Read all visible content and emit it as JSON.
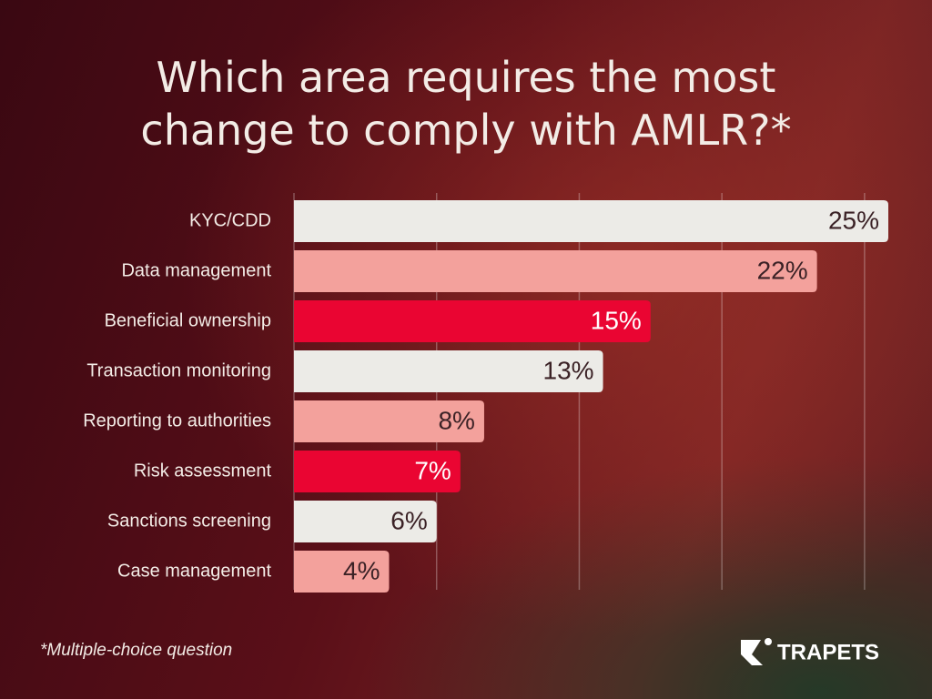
{
  "chart_data": {
    "type": "bar",
    "orientation": "horizontal",
    "title": "Which area requires the most change to comply with AMLR?*",
    "categories": [
      "KYC/CDD",
      "Data management",
      "Beneficial ownership",
      "Transaction monitoring",
      "Reporting to authorities",
      "Risk assessment",
      "Sanctions screening",
      "Case management"
    ],
    "values": [
      25,
      22,
      15,
      13,
      8,
      7,
      6,
      4
    ],
    "value_labels": [
      "25%",
      "22%",
      "15%",
      "13%",
      "8%",
      "7%",
      "6%",
      "4%"
    ],
    "colors": [
      "#ecebe7",
      "#f3a19c",
      "#ea0532",
      "#ecebe7",
      "#f3a19c",
      "#ea0532",
      "#ecebe7",
      "#f3a19c"
    ],
    "xlim": [
      0,
      25
    ],
    "xticks": [
      6,
      12,
      18,
      24
    ],
    "grid": true,
    "footnote": "*Multiple-choice question"
  },
  "logo": "TRAPETS"
}
